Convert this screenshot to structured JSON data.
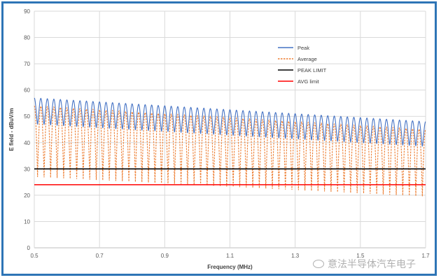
{
  "chart_data": {
    "type": "line",
    "xlabel": "Frequency (MHz)",
    "ylabel": "E field - dBuV/m",
    "xlim": [
      0.5,
      1.7
    ],
    "ylim": [
      0,
      90
    ],
    "x_ticks": [
      "0.5",
      "0.7",
      "0.9",
      "1.1",
      "1.3",
      "1.5",
      "1.7"
    ],
    "y_ticks": [
      "0",
      "10",
      "20",
      "30",
      "40",
      "50",
      "60",
      "70",
      "80",
      "90"
    ],
    "grid": true,
    "legend_position": "top-right",
    "series": [
      {
        "name": "Peak",
        "kind": "ripple",
        "style": "solid",
        "color": "#4472c4",
        "period_mhz": 0.02,
        "high_start": 57,
        "high_end": 48,
        "low_start": 47,
        "low_end": 38.5
      },
      {
        "name": "Average",
        "kind": "ripple",
        "style": "dashed",
        "color": "#ed7d31",
        "period_mhz": 0.02,
        "high_start": 54,
        "high_end": 45,
        "low_start": 27,
        "low_end": 19.5
      },
      {
        "name": "PEAK LIMIT",
        "kind": "constant",
        "style": "solid",
        "color": "#000000",
        "value": 30
      },
      {
        "name": "AVG limit",
        "kind": "constant",
        "style": "solid",
        "color": "#ff0000",
        "value": 24
      }
    ]
  },
  "watermark": {
    "text": "意法半导体汽车电子",
    "icon": "wechat-icon"
  }
}
